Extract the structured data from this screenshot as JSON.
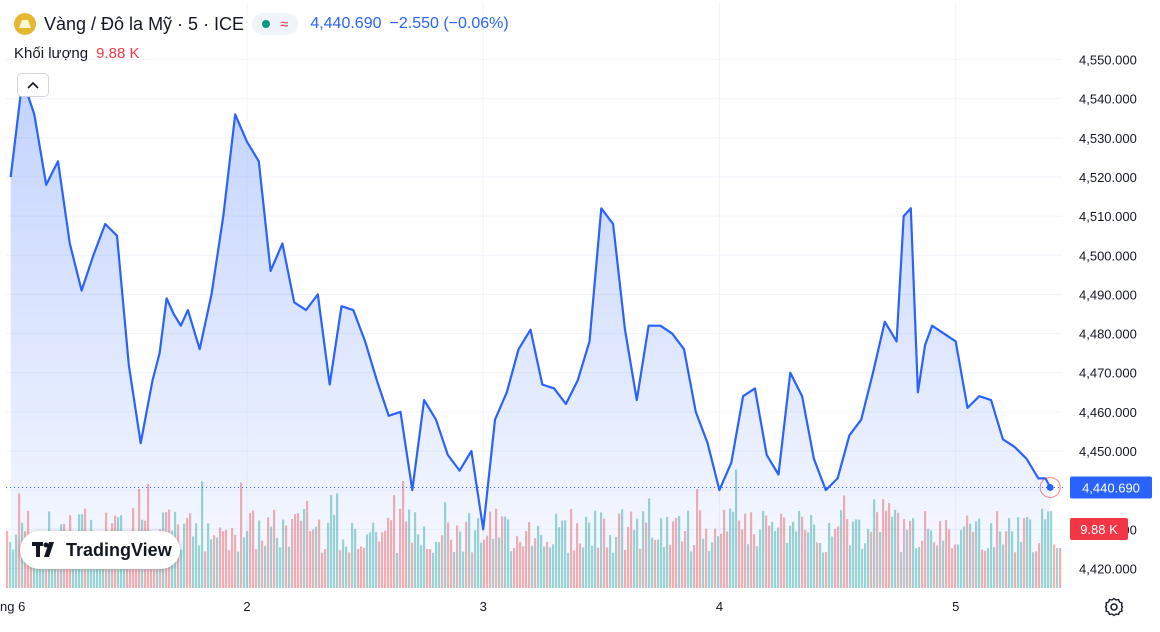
{
  "header": {
    "symbol": "Vàng / Đô la Mỹ · 5 · ICE",
    "icon": "gold-bars-icon",
    "status_icon": "market-open-dot-icon",
    "wave_icon": "delayed-wave-icon",
    "price": "4,440.690",
    "change": "−2.550 (−0.06%)"
  },
  "volume": {
    "label": "Khối lượng",
    "value": "9.88 K"
  },
  "branding": {
    "logo_text": "TradingView"
  },
  "colors": {
    "line": "#2962ff",
    "volume_up": "#26a69a",
    "volume_down": "#ef5350",
    "price_tag_bg": "#2962ff",
    "volume_tag_bg": "#f23645",
    "grid": "#f0f3fa",
    "axis_text": "#131722"
  },
  "chart_data": {
    "type": "area",
    "title": "Vàng / Đô la Mỹ · 5 · ICE",
    "ylim": [
      4415,
      4555
    ],
    "y_ticks": [
      "4,420.000",
      "4,430.000",
      "4,440.000",
      "4,450.000",
      "4,460.000",
      "4,470.000",
      "4,480.000",
      "4,490.000",
      "4,500.000",
      "4,510.000",
      "4,520.000",
      "4,530.000",
      "4,540.000",
      "4,550.000"
    ],
    "y_tick_values": [
      4420,
      4430,
      4440,
      4450,
      4460,
      4470,
      4480,
      4490,
      4500,
      4510,
      4520,
      4530,
      4540,
      4550
    ],
    "x_ticks": [
      "ng 6",
      "2",
      "3",
      "4",
      "5"
    ],
    "x_tick_positions": [
      0.0,
      1.0,
      2.0,
      3.0,
      4.0
    ],
    "x_range": [
      -0.02,
      4.45
    ],
    "last_price": 4440.69,
    "last_price_label": "4,440.690",
    "volume_label": "9.88 K",
    "grid": true,
    "series": [
      {
        "x": [
          0.0,
          0.05,
          0.1,
          0.15,
          0.2,
          0.25,
          0.3,
          0.35,
          0.4,
          0.45,
          0.5,
          0.55,
          0.6,
          0.63,
          0.66,
          0.69,
          0.72,
          0.75,
          0.8,
          0.85,
          0.9,
          0.95,
          1.0,
          1.05,
          1.1,
          1.15,
          1.2,
          1.25,
          1.3,
          1.35,
          1.4,
          1.45,
          1.5,
          1.55,
          1.6,
          1.65,
          1.7,
          1.75,
          1.8,
          1.85,
          1.9,
          1.95,
          2.0,
          2.05,
          2.1,
          2.15,
          2.2,
          2.25,
          2.3,
          2.35,
          2.4,
          2.45,
          2.5,
          2.55,
          2.6,
          2.65,
          2.7,
          2.75,
          2.8,
          2.85,
          2.9,
          2.95,
          3.0,
          3.05,
          3.1,
          3.15,
          3.2,
          3.25,
          3.3,
          3.35,
          3.4,
          3.45,
          3.5,
          3.55,
          3.6,
          3.65,
          3.7,
          3.75,
          3.78,
          3.81,
          3.84,
          3.87,
          3.9,
          3.95,
          4.0,
          4.05,
          4.1,
          4.15,
          4.2,
          4.25,
          4.3,
          4.35,
          4.38,
          4.4
        ],
        "y": [
          4520,
          4545,
          4536,
          4518,
          4524,
          4503,
          4491,
          4500,
          4508,
          4505,
          4472,
          4452,
          4468,
          4475,
          4489,
          4485,
          4482,
          4486,
          4476,
          4490,
          4510,
          4536,
          4529,
          4524,
          4496,
          4503,
          4488,
          4486,
          4490,
          4467,
          4487,
          4486,
          4478,
          4468,
          4459,
          4460,
          4440,
          4463,
          4458,
          4449,
          4445,
          4450,
          4430,
          4458,
          4465,
          4476,
          4481,
          4467,
          4466,
          4462,
          4468,
          4478,
          4512,
          4508,
          4481,
          4463,
          4482,
          4482,
          4480,
          4476,
          4460,
          4452,
          4440,
          4447,
          4464,
          4466,
          4449,
          4444,
          4470,
          4464,
          4448,
          4440,
          4443,
          4454,
          4458,
          4470,
          4483,
          4478,
          4510,
          4512,
          4465,
          4477,
          4482,
          4480,
          4478,
          4461,
          4464,
          4463,
          4453,
          4451,
          4448,
          4443,
          4443,
          4440.69
        ]
      }
    ]
  }
}
